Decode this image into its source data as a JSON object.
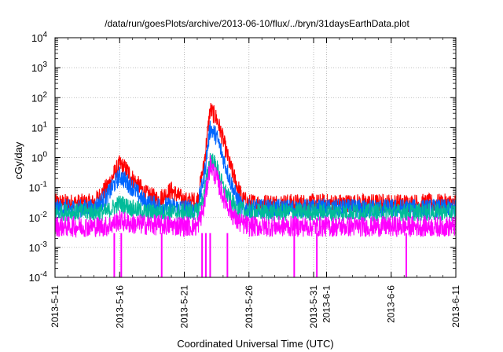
{
  "chart_data": {
    "type": "line",
    "title": "/data/run/goesPlots/archive/2013-06-10/flux/../bryn/31daysEarthData.plot",
    "xlabel": "Coordinated Universal Time (UTC)",
    "ylabel": "cGy/day",
    "yscale": "log",
    "ylim": [
      0.0001,
      10000
    ],
    "xlim": [
      "2013-05-11",
      "2013-06-11"
    ],
    "grid": true,
    "legend": "none",
    "x_ticks": [
      "2013-5-11",
      "2013-5-16",
      "2013-5-21",
      "2013-5-26",
      "2013-5-31",
      "2013-6-1",
      "2013-6-6",
      "2013-6-11"
    ],
    "y_ticks": [
      {
        "value": 0.0001,
        "base": "10",
        "exp": "-4"
      },
      {
        "value": 0.001,
        "base": "10",
        "exp": "-3"
      },
      {
        "value": 0.01,
        "base": "10",
        "exp": "-2"
      },
      {
        "value": 0.1,
        "base": "10",
        "exp": "-1"
      },
      {
        "value": 1,
        "base": "10",
        "exp": "0"
      },
      {
        "value": 10,
        "base": "10",
        "exp": "1"
      },
      {
        "value": 100,
        "base": "10",
        "exp": "2"
      },
      {
        "value": 1000,
        "base": "10",
        "exp": "3"
      },
      {
        "value": 10000,
        "base": "10",
        "exp": "4"
      }
    ],
    "series": [
      {
        "color": "#ff0000",
        "x": [
          "2013-05-11",
          "2013-05-14",
          "2013-05-15",
          "2013-05-16",
          "2013-05-16T12:00",
          "2013-05-17",
          "2013-05-18",
          "2013-05-19",
          "2013-05-20",
          "2013-05-21",
          "2013-05-22",
          "2013-05-22T12:00",
          "2013-05-23",
          "2013-05-23T12:00",
          "2013-05-24",
          "2013-05-24T12:00",
          "2013-05-25",
          "2013-05-25T12:00",
          "2013-05-26",
          "2013-05-28",
          "2013-06-01",
          "2013-06-06",
          "2013-06-11"
        ],
        "values": [
          0.03,
          0.03,
          0.1,
          0.6,
          0.4,
          0.2,
          0.06,
          0.04,
          0.08,
          0.035,
          0.035,
          0.5,
          40,
          20,
          4,
          0.6,
          0.15,
          0.04,
          0.03,
          0.03,
          0.03,
          0.03,
          0.03
        ]
      },
      {
        "color": "#0066ff",
        "x": [
          "2013-05-11",
          "2013-05-14",
          "2013-05-15",
          "2013-05-16",
          "2013-05-17",
          "2013-05-18",
          "2013-05-19",
          "2013-05-21",
          "2013-05-22",
          "2013-05-22T12:00",
          "2013-05-23",
          "2013-05-23T12:00",
          "2013-05-24",
          "2013-05-24T12:00",
          "2013-05-25",
          "2013-05-25T12:00",
          "2013-05-26",
          "2013-06-11"
        ],
        "values": [
          0.02,
          0.02,
          0.05,
          0.25,
          0.1,
          0.03,
          0.025,
          0.02,
          0.02,
          0.2,
          10,
          5,
          1,
          0.2,
          0.05,
          0.02,
          0.02,
          0.02
        ]
      },
      {
        "color": "#00bb99",
        "x": [
          "2013-05-11",
          "2013-05-15",
          "2013-05-16",
          "2013-05-17",
          "2013-05-18",
          "2013-05-22",
          "2013-05-22T12:00",
          "2013-05-23",
          "2013-05-23T12:00",
          "2013-05-24",
          "2013-05-24T12:00",
          "2013-05-25",
          "2013-05-26",
          "2013-06-11"
        ],
        "values": [
          0.015,
          0.015,
          0.03,
          0.02,
          0.015,
          0.015,
          0.05,
          1,
          0.5,
          0.1,
          0.04,
          0.02,
          0.015,
          0.015
        ]
      },
      {
        "color": "#ff00ff",
        "x": [
          "2013-05-11",
          "2013-05-15",
          "2013-05-16",
          "2013-05-17",
          "2013-05-22",
          "2013-05-22T12:00",
          "2013-05-23",
          "2013-05-23T12:00",
          "2013-05-24",
          "2013-05-24T12:00",
          "2013-05-25",
          "2013-05-25T12:00",
          "2013-05-26",
          "2013-06-11"
        ],
        "values": [
          0.005,
          0.005,
          0.008,
          0.006,
          0.005,
          0.02,
          0.6,
          0.2,
          0.05,
          0.02,
          0.008,
          0.006,
          0.005,
          0.005
        ]
      }
    ]
  }
}
